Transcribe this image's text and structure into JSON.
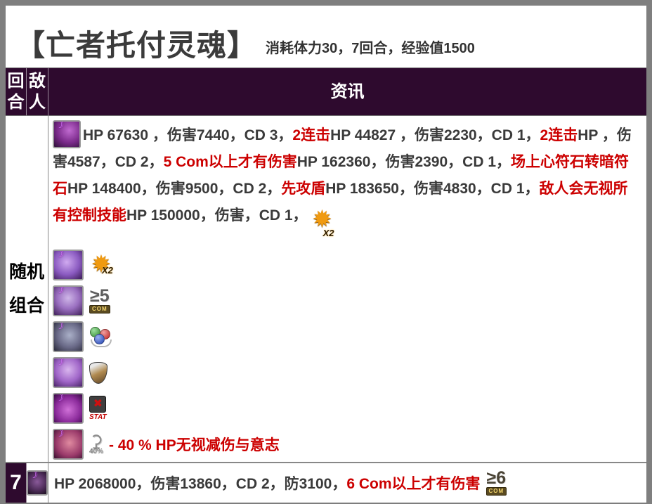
{
  "colors": {
    "normal": "#3a3a3a",
    "red": "#cc0000",
    "header_bg": "#2e0a2e",
    "frame_gray": "#7f7f7f"
  },
  "stage": {
    "title": "【亡者托付灵魂】",
    "stats": "消耗体力30，7回合，经验值1500"
  },
  "table_headers": {
    "round": "回合",
    "enemy": "敌人",
    "info": "资讯"
  },
  "random_row": {
    "round_label": "随机组合",
    "info_segments": [
      {
        "text": "HP 67630 ，伤害7440，CD 3，",
        "color": "normal"
      },
      {
        "text": "2连击",
        "color": "red"
      },
      {
        "text": "HP 44827 ，伤害2230，CD 1，",
        "color": "normal"
      },
      {
        "text": "2连击",
        "color": "red"
      },
      {
        "text": "HP ，伤害4587，CD 2，",
        "color": "normal"
      },
      {
        "text": "5 Com以上才有伤害",
        "color": "red"
      },
      {
        "text": "HP 162360，伤害2390，CD 1，",
        "color": "normal"
      },
      {
        "text": "场上心符石转暗符石",
        "color": "red"
      },
      {
        "text": "HP 148400，伤害9500，CD 2，",
        "color": "normal"
      },
      {
        "text": "先攻盾",
        "color": "red"
      },
      {
        "text": "HP 183650，伤害4830，CD 1，",
        "color": "normal"
      },
      {
        "text": "敌人会无视所有控制技能",
        "color": "red"
      },
      {
        "text": "HP 150000，伤害，CD 1，",
        "color": "normal"
      }
    ],
    "note_segments": [
      {
        "text": "- 40 % HP无视减伤与意志",
        "color": "red"
      }
    ]
  },
  "row7": {
    "round": "7",
    "info_segments": [
      {
        "text": "HP 2068000，伤害13860，CD 2，防3100，",
        "color": "normal"
      },
      {
        "text": "6 Com以上才有伤害",
        "color": "red"
      }
    ]
  },
  "badges": {
    "x2_label": "X2",
    "com5_main": "≥5",
    "com6_main": "≥6",
    "com_label": "COM",
    "stat_label": "STAT",
    "pct40_label": "40%"
  },
  "glyphs": {
    "star": "✹",
    "x_mark": "✖",
    "sickle": "⚳",
    "moon": "☽"
  }
}
